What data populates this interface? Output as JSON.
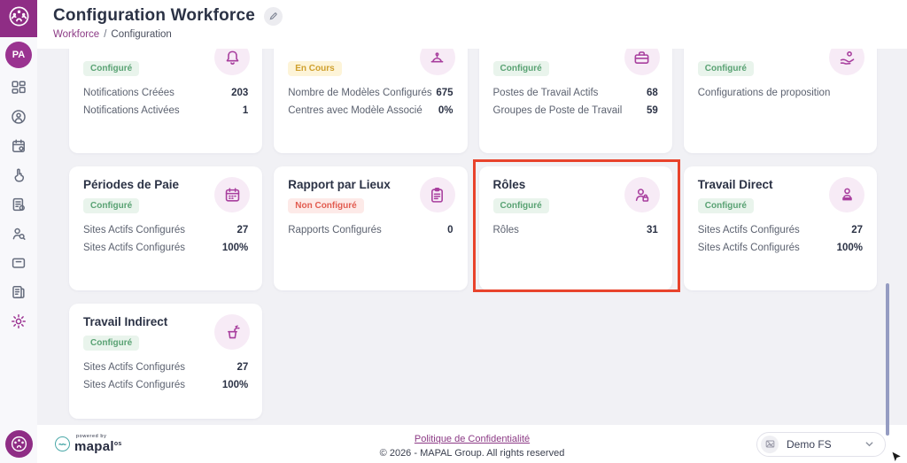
{
  "header": {
    "title": "Configuration Workforce",
    "breadcrumb": {
      "parent": "Workforce",
      "separator": "/",
      "current": "Configuration"
    }
  },
  "sidebar": {
    "avatar_initials": "PA",
    "items": [
      {
        "icon": "dashboard",
        "active": false
      },
      {
        "icon": "users",
        "active": false
      },
      {
        "icon": "calendar",
        "active": false
      },
      {
        "icon": "gesture",
        "active": false
      },
      {
        "icon": "document",
        "active": false
      },
      {
        "icon": "user-search",
        "active": false
      },
      {
        "icon": "archive",
        "active": false
      },
      {
        "icon": "reports",
        "active": false
      },
      {
        "icon": "settings",
        "active": true
      }
    ]
  },
  "cards": [
    {
      "slug": "notifications",
      "title": "",
      "icon": "bell",
      "status": {
        "label": "Configuré",
        "type": "ok"
      },
      "stats": [
        {
          "label": "Notifications Créées",
          "value": "203"
        },
        {
          "label": "Notifications Activées",
          "value": "1"
        }
      ]
    },
    {
      "slug": "modeles",
      "title": "",
      "icon": "desk-bell",
      "status": {
        "label": "En Cours",
        "type": "progress"
      },
      "stats": [
        {
          "label": "Nombre de Modèles Configurés",
          "value": "675"
        },
        {
          "label": "Centres avec Modèle Associé",
          "value": "0%"
        }
      ]
    },
    {
      "slug": "postes-travail",
      "title": "",
      "icon": "briefcase",
      "status": {
        "label": "Configuré",
        "type": "ok"
      },
      "stats": [
        {
          "label": "Postes de Travail Actifs",
          "value": "68"
        },
        {
          "label": "Groupes de Poste de Travail",
          "value": "59"
        }
      ]
    },
    {
      "slug": "propositions",
      "title": "",
      "icon": "hand-offer",
      "status": {
        "label": "Configuré",
        "type": "ok"
      },
      "stats": [
        {
          "label": "Configurations de proposition",
          "value": ""
        }
      ]
    },
    {
      "slug": "periodes-paie",
      "title": "Périodes de Paie",
      "icon": "calendar-card",
      "status": {
        "label": "Configuré",
        "type": "ok"
      },
      "stats": [
        {
          "label": "Sites Actifs Configurés",
          "value": "27"
        },
        {
          "label": "Sites Actifs Configurés",
          "value": "100%"
        }
      ]
    },
    {
      "slug": "rapport-lieux",
      "title": "Rapport par Lieux",
      "icon": "clipboard",
      "status": {
        "label": "Non Configuré",
        "type": "error"
      },
      "stats": [
        {
          "label": "Rapports Configurés",
          "value": "0"
        }
      ]
    },
    {
      "slug": "roles",
      "title": "Rôles",
      "icon": "user-lock",
      "status": {
        "label": "Configuré",
        "type": "ok"
      },
      "highlighted": true,
      "stats": [
        {
          "label": "Rôles",
          "value": "31"
        }
      ]
    },
    {
      "slug": "travail-direct",
      "title": "Travail Direct",
      "icon": "user-desk",
      "status": {
        "label": "Configuré",
        "type": "ok"
      },
      "stats": [
        {
          "label": "Sites Actifs Configurés",
          "value": "27"
        },
        {
          "label": "Sites Actifs Configurés",
          "value": "100%"
        }
      ]
    },
    {
      "slug": "travail-indirect",
      "title": "Travail Indirect",
      "icon": "bucket",
      "status": {
        "label": "Configuré",
        "type": "ok"
      },
      "short": true,
      "stats": [
        {
          "label": "Sites Actifs Configurés",
          "value": "27"
        },
        {
          "label": "Sites Actifs Configurés",
          "value": "100%"
        }
      ]
    }
  ],
  "footer": {
    "powered_by": "powered by",
    "brand": "mapal",
    "brand_suffix": "os",
    "privacy_link": "Politique de Confidentialité",
    "copyright": "© 2026 - MAPAL Group. All rights reserved",
    "site_selector": "Demo FS"
  },
  "colors": {
    "brand_purple": "#8f2d85",
    "accent_purple": "#9a3390",
    "status_ok_text": "#59a273",
    "status_progress_text": "#cfa02e",
    "status_error_text": "#e25c50",
    "highlight_border": "#e8432c",
    "card_icon": "#a83f9e"
  }
}
